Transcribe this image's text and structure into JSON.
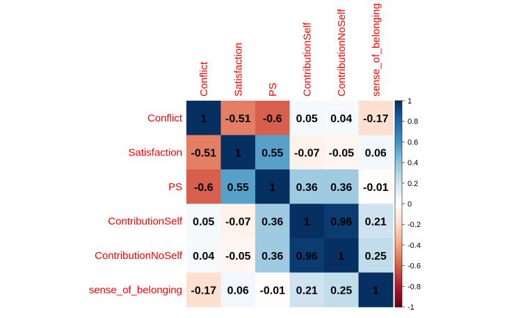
{
  "chart_data": {
    "type": "heatmap",
    "variables": [
      "Conflict",
      "Satisfaction",
      "PS",
      "ContributionSelf",
      "ContributionNoSelf",
      "sense_of_belonging"
    ],
    "matrix": [
      [
        1,
        -0.51,
        -0.6,
        0.05,
        0.04,
        -0.17
      ],
      [
        -0.51,
        1,
        0.55,
        -0.07,
        -0.05,
        0.06
      ],
      [
        -0.6,
        0.55,
        1,
        0.36,
        0.36,
        -0.01
      ],
      [
        0.05,
        -0.07,
        0.36,
        1,
        0.96,
        0.21
      ],
      [
        0.04,
        -0.05,
        0.36,
        0.96,
        1,
        0.25
      ],
      [
        -0.17,
        0.06,
        -0.01,
        0.21,
        0.25,
        1
      ]
    ],
    "labels": [
      [
        "1",
        "-0.51",
        "-0.6",
        "0.05",
        "0.04",
        "-0.17"
      ],
      [
        "-0.51",
        "1",
        "0.55",
        "-0.07",
        "-0.05",
        "0.06"
      ],
      [
        "-0.6",
        "0.55",
        "1",
        "0.36",
        "0.36",
        "-0.01"
      ],
      [
        "0.05",
        "-0.07",
        "0.36",
        "1",
        "0.96",
        "0.21"
      ],
      [
        "0.04",
        "-0.05",
        "0.36",
        "0.96",
        "1",
        "0.25"
      ],
      [
        "-0.17",
        "0.06",
        "-0.01",
        "0.21",
        "0.25",
        "1"
      ]
    ],
    "colorbar": {
      "range": [
        -1,
        1
      ],
      "ticks": [
        "1",
        "0.8",
        "0.6",
        "0.4",
        "0.2",
        "0",
        "-0.2",
        "-0.4",
        "-0.6",
        "-0.8",
        "-1"
      ]
    },
    "colors": {
      "negative": "#67001F",
      "neutral": "#FFFFFF",
      "positive": "#053061",
      "label_color": "#FF0000",
      "value_text": "#000000"
    }
  }
}
